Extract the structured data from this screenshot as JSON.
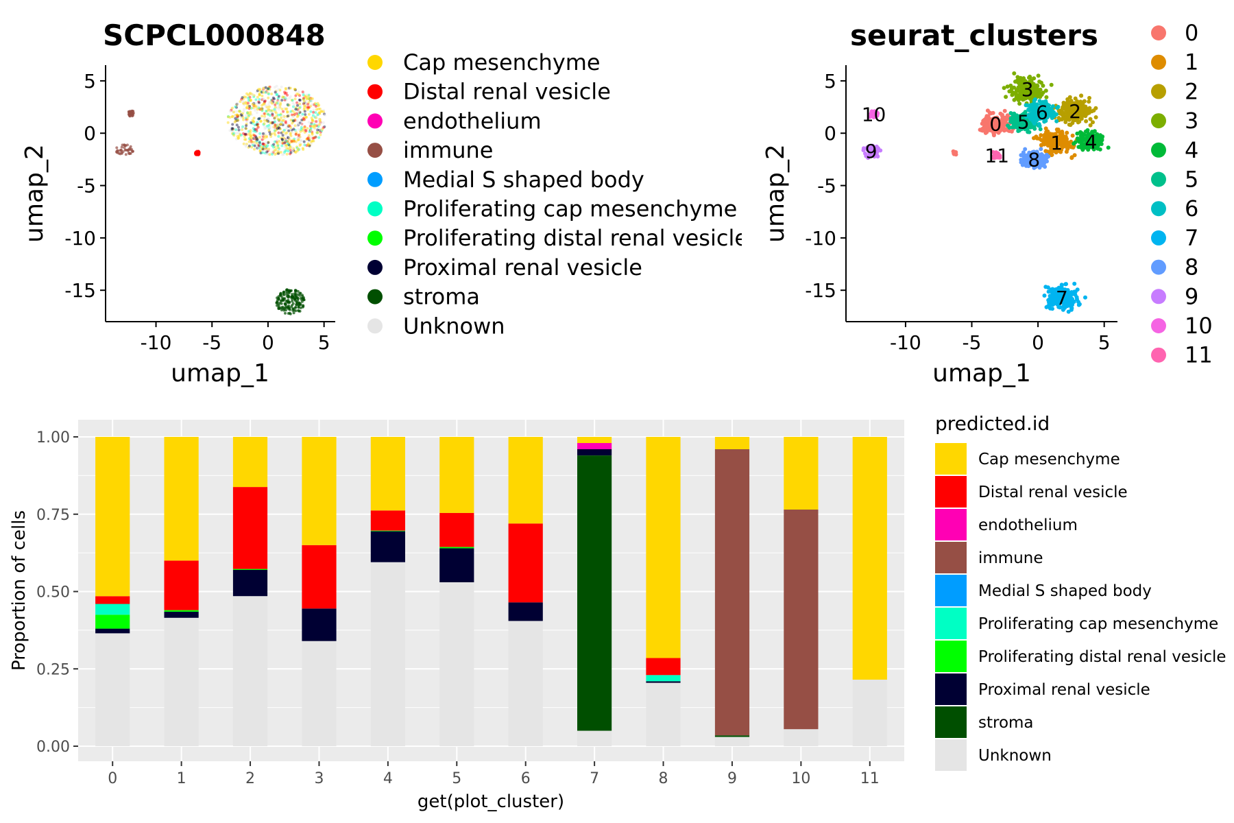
{
  "colors": {
    "Cap mesenchyme": "#FFD700",
    "Distal renal vesicle": "#FF0000",
    "endothelium": "#FF00B4",
    "immune": "#964F45",
    "Medial S shaped body": "#009DFF",
    "Proliferating cap mesenchyme": "#00FFC4",
    "Proliferating distal renal vesicle": "#00FF00",
    "Proximal renal vesicle": "#000033",
    "stroma": "#004F00",
    "Unknown": "#E5E5E5"
  },
  "cluster_colors": [
    "#F8766D",
    "#DE8C00",
    "#B79F00",
    "#7CAE00",
    "#00BA38",
    "#00C08B",
    "#00BFC4",
    "#00B4F0",
    "#619CFF",
    "#C77CFF",
    "#F564E3",
    "#FF64B0"
  ],
  "chart_data": [
    {
      "type": "scatter",
      "title": "SCPCL000848",
      "xlabel": "umap_1",
      "ylabel": "umap_2",
      "xlim": [
        -14.5,
        6
      ],
      "ylim": [
        -18,
        6.5
      ],
      "xticks": [
        -10,
        -5,
        0,
        5
      ],
      "yticks": [
        5,
        0,
        -5,
        -10,
        -15
      ],
      "legend": [
        "Cap mesenchyme",
        "Distal renal vesicle",
        "endothelium",
        "immune",
        "Medial S shaped body",
        "Proliferating cap mesenchyme",
        "Proliferating distal renal vesicle",
        "Proximal renal vesicle",
        "stroma",
        "Unknown"
      ],
      "legend_placement": "right",
      "groups": [
        {
          "label": "Cap mesenchyme",
          "cx": 0.8,
          "cy": 1.2,
          "rx": 4.4,
          "ry": 3.3
        },
        {
          "label": "immune",
          "cx": -12.8,
          "cy": -1.6,
          "rx": 0.8,
          "ry": 0.5
        },
        {
          "label": "immune",
          "cx": -12.2,
          "cy": 1.9,
          "rx": 0.3,
          "ry": 0.3
        },
        {
          "label": "Distal renal vesicle",
          "cx": -6.3,
          "cy": -1.9,
          "rx": 0.2,
          "ry": 0.2
        },
        {
          "label": "stroma",
          "cx": 2.0,
          "cy": -16.1,
          "rx": 1.3,
          "ry": 1.2
        }
      ]
    },
    {
      "type": "scatter",
      "title": "seurat_clusters",
      "xlabel": "umap_1",
      "ylabel": "umap_2",
      "xlim": [
        -14.5,
        6
      ],
      "ylim": [
        -18,
        6.5
      ],
      "xticks": [
        -10,
        -5,
        0,
        5
      ],
      "yticks": [
        5,
        0,
        -5,
        -10,
        -15
      ],
      "legend": [
        "0",
        "1",
        "2",
        "3",
        "4",
        "5",
        "6",
        "7",
        "8",
        "9",
        "10",
        "11"
      ],
      "legend_placement": "right",
      "cluster_labels": [
        {
          "label": "0",
          "x": -3.2,
          "y": 0.9
        },
        {
          "label": "1",
          "x": 1.4,
          "y": -0.9
        },
        {
          "label": "2",
          "x": 2.8,
          "y": 2.1
        },
        {
          "label": "3",
          "x": -0.8,
          "y": 4.2
        },
        {
          "label": "4",
          "x": 4.0,
          "y": -0.8
        },
        {
          "label": "5",
          "x": -1.1,
          "y": 1.1
        },
        {
          "label": "6",
          "x": 0.3,
          "y": 2.0
        },
        {
          "label": "7",
          "x": 1.8,
          "y": -15.7
        },
        {
          "label": "8",
          "x": -0.3,
          "y": -2.5
        },
        {
          "label": "9",
          "x": -12.6,
          "y": -1.7
        },
        {
          "label": "10",
          "x": -12.4,
          "y": 1.8
        },
        {
          "label": "11",
          "x": -3.1,
          "y": -2.1
        }
      ]
    },
    {
      "type": "bar",
      "stacked": true,
      "xlabel": "get(plot_cluster)",
      "ylabel": "Proportion of cells",
      "ylim": [
        0,
        1
      ],
      "yticks": [
        "0.00",
        "0.25",
        "0.50",
        "0.75",
        "1.00"
      ],
      "legend_title": "predicted.id",
      "legend_placement": "right",
      "categories": [
        "0",
        "1",
        "2",
        "3",
        "4",
        "5",
        "6",
        "7",
        "8",
        "9",
        "10",
        "11"
      ],
      "series": [
        {
          "name": "Unknown",
          "values": [
            0.365,
            0.415,
            0.485,
            0.34,
            0.595,
            0.53,
            0.405,
            0.05,
            0.205,
            0.03,
            0.055,
            0.215
          ]
        },
        {
          "name": "stroma",
          "values": [
            0,
            0,
            0,
            0,
            0,
            0,
            0,
            0.89,
            0,
            0.005,
            0,
            0
          ]
        },
        {
          "name": "Proximal renal vesicle",
          "values": [
            0.015,
            0.02,
            0.085,
            0.105,
            0.1,
            0.11,
            0.06,
            0.02,
            0.005,
            0,
            0,
            0
          ]
        },
        {
          "name": "Proliferating distal renal vesicle",
          "values": [
            0.045,
            0.005,
            0.003,
            0,
            0.002,
            0.004,
            0,
            0,
            0,
            0,
            0,
            0
          ]
        },
        {
          "name": "Proliferating cap mesenchyme",
          "values": [
            0.035,
            0,
            0,
            0,
            0,
            0,
            0,
            0,
            0.02,
            0,
            0,
            0
          ]
        },
        {
          "name": "Medial S shaped body",
          "values": [
            0,
            0,
            0,
            0,
            0,
            0,
            0,
            0,
            0,
            0,
            0,
            0
          ]
        },
        {
          "name": "immune",
          "values": [
            0,
            0,
            0,
            0,
            0,
            0,
            0,
            0,
            0,
            0.925,
            0.71,
            0
          ]
        },
        {
          "name": "endothelium",
          "values": [
            0,
            0,
            0,
            0,
            0,
            0,
            0,
            0.02,
            0,
            0,
            0,
            0
          ]
        },
        {
          "name": "Distal renal vesicle",
          "values": [
            0.025,
            0.16,
            0.265,
            0.205,
            0.065,
            0.11,
            0.255,
            0,
            0.055,
            0,
            0,
            0
          ]
        },
        {
          "name": "Cap mesenchyme",
          "values": [
            0.515,
            0.4,
            0.162,
            0.35,
            0.238,
            0.246,
            0.28,
            0.02,
            0.715,
            0.04,
            0.235,
            0.785
          ]
        }
      ],
      "legend": [
        "Cap mesenchyme",
        "Distal renal vesicle",
        "endothelium",
        "immune",
        "Medial S shaped body",
        "Proliferating cap mesenchyme",
        "Proliferating distal renal vesicle",
        "Proximal renal vesicle",
        "stroma",
        "Unknown"
      ]
    }
  ]
}
